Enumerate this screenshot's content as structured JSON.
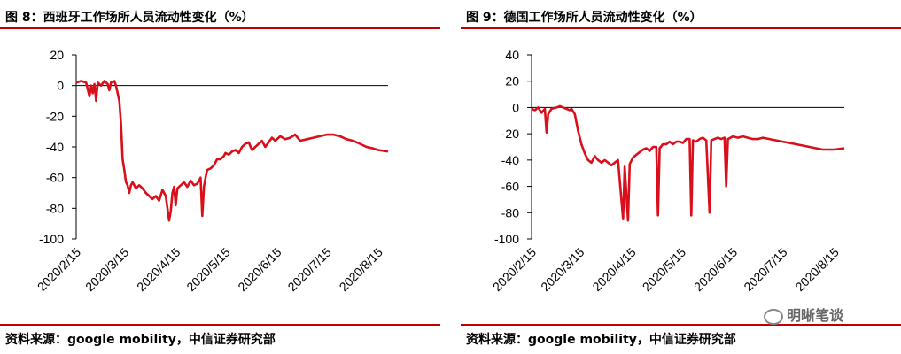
{
  "panels": [
    {
      "title": "图 8：西班牙工作场所人员流动性变化（%）",
      "source": "资料来源：google mobility，中信证券研究部"
    },
    {
      "title": "图 9：德国工作场所人员流动性变化（%）",
      "source": "资料来源：google mobility，中信证券研究部"
    }
  ],
  "watermark": "明晰笔谈",
  "chart_data": [
    {
      "type": "line",
      "title": "西班牙工作场所人员流动性变化（%）",
      "ylim": [
        -100,
        20
      ],
      "yticks": [
        20,
        0,
        -20,
        -40,
        -60,
        -80,
        -100
      ],
      "xticks": [
        "2020/2/15",
        "2020/3/15",
        "2020/4/15",
        "2020/5/15",
        "2020/6/15",
        "2020/7/15",
        "2020/8/15"
      ],
      "xrange": [
        "2020/2/15",
        "2020/8/21"
      ],
      "series": [
        {
          "color": "#d9101b",
          "points": [
            [
              "2020/2/15",
              2
            ],
            [
              "2020/2/18",
              3
            ],
            [
              "2020/2/21",
              2
            ],
            [
              "2020/2/23",
              -7
            ],
            [
              "2020/2/24",
              0
            ],
            [
              "2020/2/25",
              -5
            ],
            [
              "2020/2/26",
              1
            ],
            [
              "2020/2/27",
              -10
            ],
            [
              "2020/2/28",
              2
            ],
            [
              "2020/3/1",
              0
            ],
            [
              "2020/3/3",
              3
            ],
            [
              "2020/3/5",
              1
            ],
            [
              "2020/3/6",
              -3
            ],
            [
              "2020/3/7",
              2
            ],
            [
              "2020/3/9",
              3
            ],
            [
              "2020/3/10",
              0
            ],
            [
              "2020/3/12",
              -10
            ],
            [
              "2020/3/13",
              -25
            ],
            [
              "2020/3/14",
              -48
            ],
            [
              "2020/3/15",
              -55
            ],
            [
              "2020/3/16",
              -63
            ],
            [
              "2020/3/17",
              -65
            ],
            [
              "2020/3/18",
              -70
            ],
            [
              "2020/3/19",
              -65
            ],
            [
              "2020/3/20",
              -63
            ],
            [
              "2020/3/22",
              -67
            ],
            [
              "2020/3/24",
              -65
            ],
            [
              "2020/3/26",
              -67
            ],
            [
              "2020/3/28",
              -70
            ],
            [
              "2020/3/30",
              -72
            ],
            [
              "2020/4/1",
              -74
            ],
            [
              "2020/4/3",
              -72
            ],
            [
              "2020/4/5",
              -75
            ],
            [
              "2020/4/7",
              -68
            ],
            [
              "2020/4/9",
              -72
            ],
            [
              "2020/4/11",
              -88
            ],
            [
              "2020/4/12",
              -82
            ],
            [
              "2020/4/13",
              -70
            ],
            [
              "2020/4/14",
              -66
            ],
            [
              "2020/4/15",
              -78
            ],
            [
              "2020/4/16",
              -67
            ],
            [
              "2020/4/18",
              -65
            ],
            [
              "2020/4/20",
              -63
            ],
            [
              "2020/4/22",
              -66
            ],
            [
              "2020/4/24",
              -62
            ],
            [
              "2020/4/26",
              -65
            ],
            [
              "2020/4/28",
              -64
            ],
            [
              "2020/4/30",
              -60
            ],
            [
              "2020/5/1",
              -85
            ],
            [
              "2020/5/2",
              -66
            ],
            [
              "2020/5/3",
              -60
            ],
            [
              "2020/5/4",
              -55
            ],
            [
              "2020/5/6",
              -54
            ],
            [
              "2020/5/8",
              -52
            ],
            [
              "2020/5/10",
              -48
            ],
            [
              "2020/5/12",
              -48
            ],
            [
              "2020/5/14",
              -46
            ],
            [
              "2020/5/15",
              -44
            ],
            [
              "2020/5/17",
              -45
            ],
            [
              "2020/5/19",
              -43
            ],
            [
              "2020/5/21",
              -42
            ],
            [
              "2020/5/23",
              -44
            ],
            [
              "2020/5/25",
              -40
            ],
            [
              "2020/5/27",
              -38
            ],
            [
              "2020/5/29",
              -37
            ],
            [
              "2020/5/31",
              -42
            ],
            [
              "2020/6/2",
              -40
            ],
            [
              "2020/6/4",
              -38
            ],
            [
              "2020/6/6",
              -36
            ],
            [
              "2020/6/8",
              -40
            ],
            [
              "2020/6/10",
              -37
            ],
            [
              "2020/6/12",
              -34
            ],
            [
              "2020/6/14",
              -36
            ],
            [
              "2020/6/17",
              -33
            ],
            [
              "2020/6/20",
              -35
            ],
            [
              "2020/6/23",
              -34
            ],
            [
              "2020/6/26",
              -32
            ],
            [
              "2020/6/29",
              -36
            ],
            [
              "2020/7/3",
              -35
            ],
            [
              "2020/7/7",
              -34
            ],
            [
              "2020/7/11",
              -33
            ],
            [
              "2020/7/15",
              -32
            ],
            [
              "2020/7/19",
              -32
            ],
            [
              "2020/7/23",
              -33
            ],
            [
              "2020/7/27",
              -35
            ],
            [
              "2020/7/31",
              -36
            ],
            [
              "2020/8/4",
              -38
            ],
            [
              "2020/8/8",
              -40
            ],
            [
              "2020/8/12",
              -41
            ],
            [
              "2020/8/15",
              -42
            ],
            [
              "2020/8/21",
              -43
            ]
          ]
        }
      ]
    },
    {
      "type": "line",
      "title": "德国工作场所人员流动性变化（%）",
      "ylim": [
        -100,
        40
      ],
      "yticks": [
        40,
        20,
        0,
        -20,
        -40,
        -60,
        -80,
        -100
      ],
      "xticks": [
        "2020/2/15",
        "2020/3/15",
        "2020/4/15",
        "2020/5/15",
        "2020/6/15",
        "2020/7/15",
        "2020/8/15"
      ],
      "xrange": [
        "2020/2/15",
        "2020/8/21"
      ],
      "series": [
        {
          "color": "#d9101b",
          "points": [
            [
              "2020/2/15",
              -1
            ],
            [
              "2020/2/17",
              -2
            ],
            [
              "2020/2/19",
              0
            ],
            [
              "2020/2/21",
              -4
            ],
            [
              "2020/2/23",
              -1
            ],
            [
              "2020/2/24",
              -19
            ],
            [
              "2020/2/25",
              -5
            ],
            [
              "2020/2/27",
              -1
            ],
            [
              "2020/3/1",
              0
            ],
            [
              "2020/3/3",
              1
            ],
            [
              "2020/3/5",
              0
            ],
            [
              "2020/3/7",
              -1
            ],
            [
              "2020/3/9",
              -2
            ],
            [
              "2020/3/10",
              -1
            ],
            [
              "2020/3/12",
              -5
            ],
            [
              "2020/3/14",
              -18
            ],
            [
              "2020/3/16",
              -28
            ],
            [
              "2020/3/18",
              -35
            ],
            [
              "2020/3/20",
              -40
            ],
            [
              "2020/3/22",
              -42
            ],
            [
              "2020/3/24",
              -37
            ],
            [
              "2020/3/26",
              -40
            ],
            [
              "2020/3/28",
              -42
            ],
            [
              "2020/3/30",
              -40
            ],
            [
              "2020/4/1",
              -42
            ],
            [
              "2020/4/3",
              -44
            ],
            [
              "2020/4/5",
              -42
            ],
            [
              "2020/4/7",
              -40
            ],
            [
              "2020/4/10",
              -85
            ],
            [
              "2020/4/11",
              -45
            ],
            [
              "2020/4/13",
              -86
            ],
            [
              "2020/4/14",
              -43
            ],
            [
              "2020/4/16",
              -38
            ],
            [
              "2020/4/18",
              -36
            ],
            [
              "2020/4/20",
              -34
            ],
            [
              "2020/4/22",
              -32
            ],
            [
              "2020/4/24",
              -31
            ],
            [
              "2020/4/26",
              -33
            ],
            [
              "2020/4/28",
              -30
            ],
            [
              "2020/4/30",
              -30
            ],
            [
              "2020/5/1",
              -82
            ],
            [
              "2020/5/2",
              -31
            ],
            [
              "2020/5/4",
              -28
            ],
            [
              "2020/5/6",
              -28
            ],
            [
              "2020/5/8",
              -26
            ],
            [
              "2020/5/10",
              -28
            ],
            [
              "2020/5/12",
              -26
            ],
            [
              "2020/5/14",
              -26
            ],
            [
              "2020/5/16",
              -27
            ],
            [
              "2020/5/18",
              -24
            ],
            [
              "2020/5/20",
              -24
            ],
            [
              "2020/5/21",
              -82
            ],
            [
              "2020/5/22",
              -25
            ],
            [
              "2020/5/24",
              -26
            ],
            [
              "2020/5/26",
              -24
            ],
            [
              "2020/5/28",
              -23
            ],
            [
              "2020/5/30",
              -25
            ],
            [
              "2020/6/1",
              -80
            ],
            [
              "2020/6/2",
              -25
            ],
            [
              "2020/6/4",
              -24
            ],
            [
              "2020/6/6",
              -23
            ],
            [
              "2020/6/8",
              -24
            ],
            [
              "2020/6/10",
              -23
            ],
            [
              "2020/6/11",
              -60
            ],
            [
              "2020/6/12",
              -24
            ],
            [
              "2020/6/15",
              -22
            ],
            [
              "2020/6/18",
              -23
            ],
            [
              "2020/6/21",
              -22
            ],
            [
              "2020/6/24",
              -23
            ],
            [
              "2020/6/27",
              -24
            ],
            [
              "2020/6/30",
              -24
            ],
            [
              "2020/7/3",
              -23
            ],
            [
              "2020/7/7",
              -24
            ],
            [
              "2020/7/11",
              -25
            ],
            [
              "2020/7/15",
              -26
            ],
            [
              "2020/7/19",
              -27
            ],
            [
              "2020/7/23",
              -28
            ],
            [
              "2020/7/27",
              -29
            ],
            [
              "2020/7/31",
              -30
            ],
            [
              "2020/8/4",
              -31
            ],
            [
              "2020/8/8",
              -32
            ],
            [
              "2020/8/12",
              -32
            ],
            [
              "2020/8/15",
              -32
            ],
            [
              "2020/8/21",
              -31
            ]
          ]
        }
      ]
    }
  ]
}
